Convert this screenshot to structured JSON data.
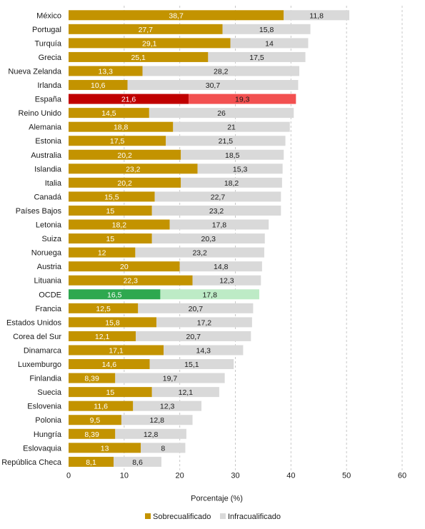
{
  "chart_data": {
    "type": "bar",
    "orientation": "horizontal",
    "stacked": true,
    "xlabel": "Porcentaje (%)",
    "xlim": [
      0,
      60
    ],
    "x_ticks": [
      0,
      10,
      20,
      30,
      40,
      50,
      60
    ],
    "grid": "vertical dashed",
    "legend_position": "bottom-center",
    "categories": [
      "México",
      "Portugal",
      "Turquía",
      "Grecia",
      "Nueva Zelanda",
      "Irlanda",
      "España",
      "Reino Unido",
      "Alemania",
      "Estonia",
      "Australia",
      "Islandia",
      "Italia",
      "Canadá",
      "Países Bajos",
      "Letonia",
      "Suiza",
      "Noruega",
      "Austria",
      "Lituania",
      "OCDE",
      "Francia",
      "Estados Unidos",
      "Corea del Sur",
      "Dinamarca",
      "Luxemburgo",
      "Finlandia",
      "Suecia",
      "Eslovenia",
      "Polonia",
      "Hungría",
      "Eslovaquia",
      "República Checa"
    ],
    "series": [
      {
        "name": "Sobrecualificado",
        "color": "#C39300",
        "values": [
          38.7,
          27.7,
          29.1,
          25.1,
          13.3,
          10.6,
          21.6,
          14.5,
          18.8,
          17.5,
          20.2,
          23.2,
          20.2,
          15.5,
          15,
          18.2,
          15,
          12,
          20,
          22.3,
          16.5,
          12.5,
          15.8,
          12.1,
          17.1,
          14.6,
          8.39,
          15,
          11.6,
          9.5,
          8.39,
          13,
          8.1
        ],
        "labels": [
          "38,7",
          "27,7",
          "29,1",
          "25,1",
          "13,3",
          "10,6",
          "21,6",
          "14,5",
          "18,8",
          "17,5",
          "20,2",
          "23,2",
          "20,2",
          "15,5",
          "15",
          "18,2",
          "15",
          "12",
          "20",
          "22,3",
          "16,5",
          "12,5",
          "15,8",
          "12,1",
          "17,1",
          "14,6",
          "8,39",
          "15",
          "11,6",
          "9,5",
          "8,39",
          "13",
          "8,1"
        ]
      },
      {
        "name": "Infracualificado",
        "color": "#D9D9D9",
        "values": [
          11.8,
          15.8,
          14,
          17.5,
          28.2,
          30.7,
          19.3,
          26,
          21,
          21.5,
          18.5,
          15.3,
          18.2,
          22.7,
          23.2,
          17.8,
          20.3,
          23.2,
          14.8,
          12.3,
          17.8,
          20.7,
          17.2,
          20.7,
          14.3,
          15.1,
          19.7,
          12.1,
          12.3,
          12.8,
          12.8,
          8,
          8.6
        ],
        "labels": [
          "11,8",
          "15,8",
          "14",
          "17,5",
          "28,2",
          "30,7",
          "19,3",
          "26",
          "21",
          "21,5",
          "18,5",
          "15,3",
          "18,2",
          "22,7",
          "23,2",
          "17,8",
          "20,3",
          "23,2",
          "14,8",
          "12,3",
          "17,8",
          "20,7",
          "17,2",
          "20,7",
          "14,3",
          "15,1",
          "19,7",
          "12,1",
          "12,3",
          "12,8",
          "12,8",
          "8",
          "8,6"
        ]
      }
    ],
    "highlights": {
      "España": {
        "Sobrecualificado": "#C00000",
        "Infracualificado": "#F25050"
      },
      "OCDE": {
        "Sobrecualificado": "#2EA84F",
        "Infracualificado": "#BDEBC6"
      }
    }
  }
}
